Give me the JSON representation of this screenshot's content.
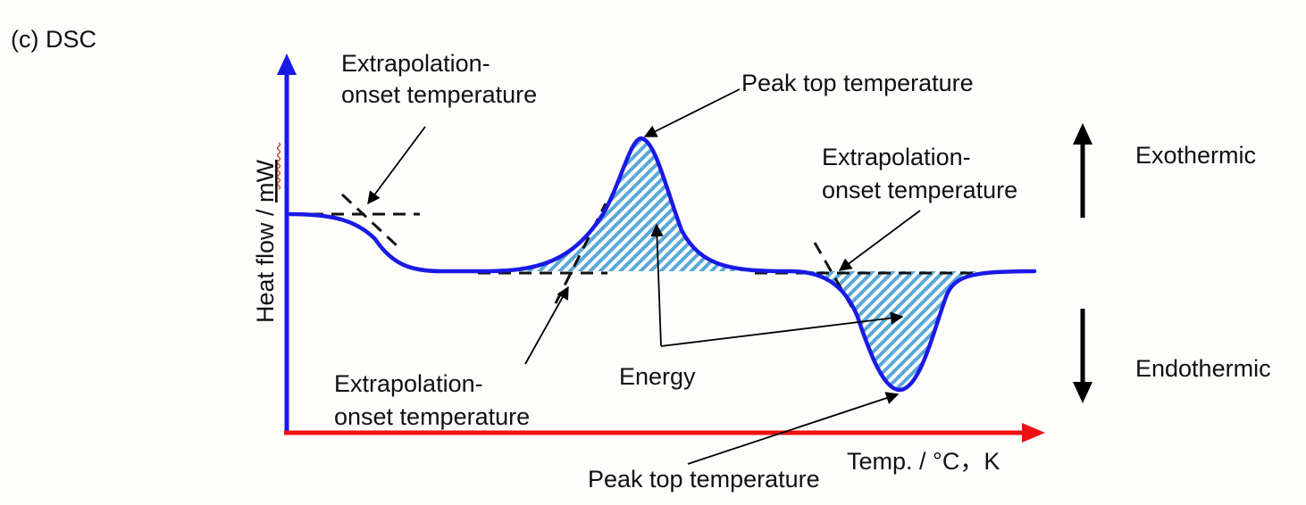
{
  "panel_label": "(c) DSC",
  "axes": {
    "y_label_prefix": "Heat flow / ",
    "y_label_unit": "mW",
    "x_label": "Temp. / °C，K"
  },
  "annotations": {
    "onset_1_line1": "Extrapolation-",
    "onset_1_line2": "onset temperature",
    "onset_2_line1": "Extrapolation-",
    "onset_2_line2": "onset temperature",
    "onset_3_line1": "Extrapolation-",
    "onset_3_line2": "onset temperature",
    "peak_top_exo": "Peak top temperature",
    "peak_top_endo": "Peak top temperature",
    "energy": "Energy"
  },
  "direction": {
    "exothermic": "Exothermic",
    "endothermic": "Endothermic"
  },
  "colors": {
    "curve": "#1a1ae6",
    "y_axis": "#1a1ae6",
    "x_axis": "#ee1111",
    "hatch": "#5aa8d8"
  }
}
